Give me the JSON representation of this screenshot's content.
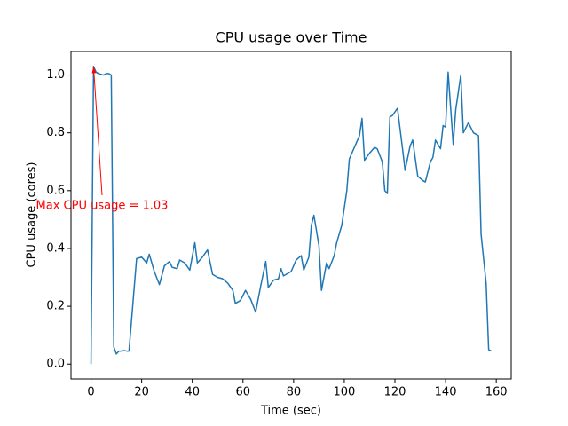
{
  "chart_data": {
    "type": "line",
    "title": "CPU usage over Time",
    "x_label": "Time (sec)",
    "y_label": "CPU usage (cores)",
    "annotation": "Max CPU usage = 1.03",
    "annotation_color": "#ff0000",
    "series": [
      {
        "name": "CPU usage",
        "color": "#1f77b4",
        "x": [
          0,
          1,
          2,
          3,
          5,
          6,
          7,
          8,
          9,
          10,
          11,
          12,
          13,
          14,
          15,
          18,
          20,
          22,
          23,
          25,
          27,
          29,
          31,
          32,
          34,
          35,
          37,
          39,
          41,
          42,
          44,
          46,
          48,
          50,
          52,
          54,
          56,
          57,
          59,
          61,
          63,
          65,
          67,
          69,
          70,
          72,
          74,
          75,
          76,
          78,
          79,
          81,
          83,
          84,
          86,
          87,
          88,
          90,
          91,
          93,
          94,
          96,
          97,
          99,
          101,
          102,
          104,
          106,
          107,
          108,
          110,
          112,
          113,
          115,
          116,
          117,
          118,
          119,
          121,
          123,
          124,
          126,
          127,
          129,
          131,
          132,
          134,
          135,
          136,
          138,
          139,
          140,
          141,
          143,
          144,
          146,
          147,
          149,
          151,
          152,
          153,
          154,
          156,
          157,
          158
        ],
        "values": [
          0.0,
          1.03,
          1.01,
          1.005,
          1.0,
          1.005,
          1.005,
          1.0,
          0.06,
          0.035,
          0.045,
          0.045,
          0.047,
          0.045,
          0.045,
          0.365,
          0.37,
          0.35,
          0.38,
          0.32,
          0.275,
          0.34,
          0.355,
          0.335,
          0.33,
          0.36,
          0.35,
          0.325,
          0.42,
          0.35,
          0.37,
          0.395,
          0.31,
          0.3,
          0.295,
          0.28,
          0.255,
          0.21,
          0.22,
          0.255,
          0.225,
          0.18,
          0.27,
          0.355,
          0.265,
          0.29,
          0.295,
          0.33,
          0.305,
          0.315,
          0.32,
          0.36,
          0.375,
          0.325,
          0.37,
          0.48,
          0.515,
          0.41,
          0.255,
          0.35,
          0.33,
          0.375,
          0.42,
          0.48,
          0.6,
          0.71,
          0.75,
          0.79,
          0.85,
          0.705,
          0.73,
          0.75,
          0.745,
          0.7,
          0.6,
          0.59,
          0.855,
          0.86,
          0.885,
          0.745,
          0.67,
          0.755,
          0.775,
          0.65,
          0.635,
          0.63,
          0.7,
          0.715,
          0.775,
          0.745,
          0.825,
          0.82,
          1.01,
          0.76,
          0.88,
          1.0,
          0.8,
          0.835,
          0.8,
          0.795,
          0.79,
          0.45,
          0.28,
          0.05,
          0.045
        ]
      }
    ],
    "xlim": [
      -7.9,
      165.9
    ],
    "xticks": [
      0,
      20,
      40,
      60,
      80,
      100,
      120,
      140,
      160
    ],
    "ylim": [
      -0.0515,
      1.0815
    ],
    "yticks": [
      {
        "value": 0,
        "label": "0.0"
      },
      {
        "value": 0.2,
        "label": "0.2"
      },
      {
        "value": 0.4,
        "label": "0.4"
      },
      {
        "value": 0.6,
        "label": "0.6"
      },
      {
        "value": 0.8,
        "label": "0.8"
      },
      {
        "value": 1,
        "label": "1.0"
      }
    ]
  }
}
